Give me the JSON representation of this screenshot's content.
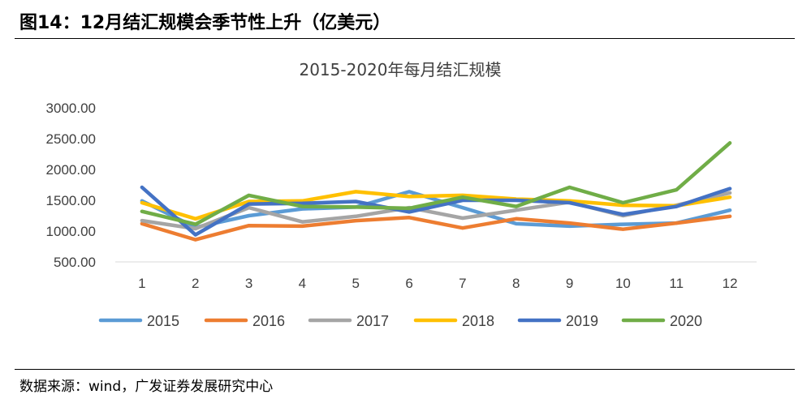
{
  "figure": {
    "title": "图14：12月结汇规模会季节性上升（亿美元）",
    "source": "数据来源：wind，广发证券发展研究中心"
  },
  "chart_data": {
    "type": "line",
    "title": "2015-2020年每月结汇规模",
    "xlabel": "",
    "ylabel": "",
    "categories": [
      "1",
      "2",
      "3",
      "4",
      "5",
      "6",
      "7",
      "8",
      "9",
      "10",
      "11",
      "12"
    ],
    "ylim": [
      500,
      3000
    ],
    "yticks": [
      500,
      1000,
      1500,
      2000,
      2500,
      3000
    ],
    "ytick_labels": [
      "500.00",
      "1000.00",
      "1500.00",
      "2000.00",
      "2500.00",
      "3000.00"
    ],
    "grid": false,
    "legend": "bottom",
    "series": [
      {
        "name": "2015",
        "color": "#5B9BD5",
        "values": [
          1490,
          1060,
          1250,
          1360,
          1390,
          1640,
          1380,
          1120,
          1080,
          1110,
          1130,
          1340
        ]
      },
      {
        "name": "2016",
        "color": "#ED7D31",
        "values": [
          1120,
          860,
          1090,
          1080,
          1170,
          1220,
          1050,
          1200,
          1130,
          1030,
          1130,
          1240
        ]
      },
      {
        "name": "2017",
        "color": "#A5A5A5",
        "values": [
          1170,
          1040,
          1380,
          1150,
          1240,
          1380,
          1210,
          1340,
          1470,
          1250,
          1420,
          1620
        ]
      },
      {
        "name": "2018",
        "color": "#FFC000",
        "values": [
          1460,
          1200,
          1480,
          1490,
          1640,
          1560,
          1580,
          1520,
          1490,
          1420,
          1410,
          1550
        ]
      },
      {
        "name": "2019",
        "color": "#4472C4",
        "values": [
          1710,
          940,
          1440,
          1450,
          1480,
          1310,
          1500,
          1500,
          1460,
          1270,
          1400,
          1690
        ]
      },
      {
        "name": "2020",
        "color": "#70AD47",
        "values": [
          1320,
          1110,
          1580,
          1400,
          1390,
          1370,
          1550,
          1400,
          1710,
          1460,
          1670,
          2430
        ]
      }
    ]
  }
}
